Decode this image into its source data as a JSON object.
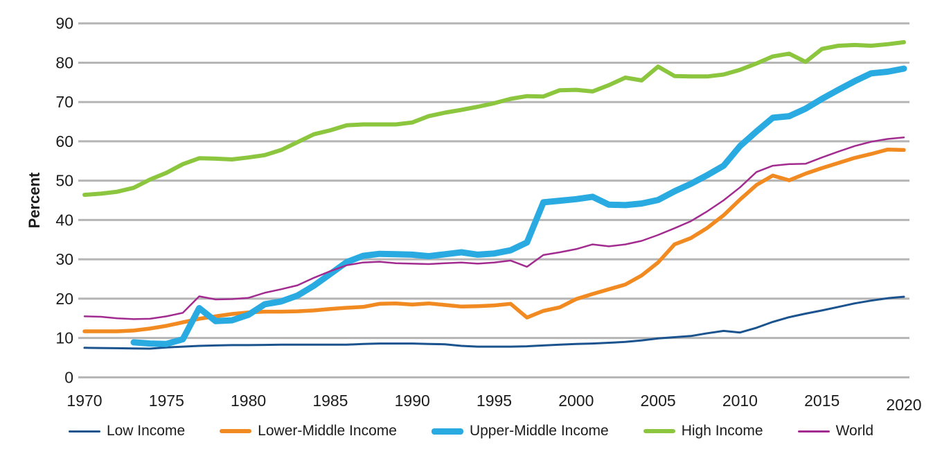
{
  "chart_data": {
    "type": "line",
    "title": "",
    "ylabel": "Percent",
    "xlabel": "",
    "ylim": [
      0,
      90
    ],
    "xlim": [
      1970,
      2020
    ],
    "y_ticks": [
      0,
      10,
      20,
      30,
      40,
      50,
      60,
      70,
      80,
      90
    ],
    "x_ticks": [
      1970,
      1975,
      1980,
      1985,
      1990,
      1995,
      2000,
      2005,
      2010,
      2015,
      2020
    ],
    "grid": true,
    "legend_position": "bottom",
    "background_color": "#ffffff",
    "grid_color": "#b5b5b5",
    "text_color": "#1c1c1c",
    "series": [
      {
        "name": "Low Income",
        "color": "#1b538e",
        "width": 3,
        "start_year": 1970,
        "values": [
          7.5,
          7.45,
          7.4,
          7.35,
          7.3,
          7.6,
          7.8,
          8.0,
          8.1,
          8.2,
          8.2,
          8.25,
          8.3,
          8.3,
          8.3,
          8.3,
          8.3,
          8.5,
          8.6,
          8.6,
          8.6,
          8.5,
          8.4,
          8.0,
          7.8,
          7.8,
          7.8,
          7.9,
          8.1,
          8.3,
          8.5,
          8.6,
          8.8,
          9.0,
          9.4,
          9.9,
          10.2,
          10.5,
          11.2,
          11.8,
          11.4,
          12.6,
          14.1,
          15.3,
          16.2,
          17.0,
          17.9,
          18.8,
          19.5,
          20.1,
          20.5
        ]
      },
      {
        "name": "Lower-Middle Income",
        "color": "#f18a21",
        "width": 5.5,
        "start_year": 1970,
        "values": [
          11.7,
          11.7,
          11.7,
          11.9,
          12.4,
          13.1,
          14.0,
          14.9,
          15.5,
          16.1,
          16.5,
          16.7,
          16.7,
          16.8,
          17.0,
          17.4,
          17.7,
          17.9,
          18.7,
          18.8,
          18.5,
          18.8,
          18.4,
          18.0,
          18.1,
          18.3,
          18.7,
          15.2,
          16.9,
          17.8,
          19.9,
          21.2,
          22.4,
          23.6,
          25.9,
          29.2,
          33.8,
          35.4,
          38.0,
          41.2,
          45.2,
          48.9,
          51.3,
          50.1,
          51.8,
          53.2,
          54.5,
          55.8,
          56.8,
          57.9,
          57.8
        ]
      },
      {
        "name": "Upper-Middle Income",
        "color": "#29abe2",
        "width": 9,
        "start_year": 1973,
        "values": [
          8.9,
          8.6,
          8.5,
          9.7,
          17.6,
          14.3,
          14.5,
          15.9,
          18.6,
          19.3,
          20.8,
          23.3,
          26.3,
          29.3,
          30.9,
          31.4,
          31.3,
          31.2,
          30.8,
          31.3,
          31.8,
          31.2,
          31.5,
          32.3,
          34.3,
          44.5,
          44.9,
          45.3,
          45.9,
          43.9,
          43.8,
          44.2,
          45.1,
          47.3,
          49.2,
          51.4,
          53.8,
          58.8,
          62.5,
          66.0,
          66.4,
          68.3,
          70.8,
          73.1,
          75.3,
          77.3,
          77.7,
          78.5
        ]
      },
      {
        "name": "High Income",
        "color": "#8cc63f",
        "width": 6,
        "start_year": 1970,
        "values": [
          46.4,
          46.7,
          47.2,
          48.2,
          50.3,
          52.0,
          54.2,
          55.7,
          55.6,
          55.4,
          55.9,
          56.5,
          57.8,
          59.8,
          61.8,
          62.8,
          64.1,
          64.3,
          64.3,
          64.3,
          64.8,
          66.4,
          67.3,
          68.0,
          68.8,
          69.7,
          70.8,
          71.5,
          71.4,
          73.0,
          73.1,
          72.7,
          74.3,
          76.2,
          75.5,
          79.0,
          76.6,
          76.5,
          76.5,
          77.0,
          78.2,
          79.8,
          81.6,
          82.3,
          80.2,
          83.5,
          84.3,
          84.5,
          84.3,
          84.7,
          85.2
        ]
      },
      {
        "name": "World",
        "color": "#a22b90",
        "width": 2.5,
        "start_year": 1970,
        "values": [
          15.5,
          15.4,
          15.0,
          14.8,
          14.9,
          15.5,
          16.4,
          20.6,
          19.8,
          19.9,
          20.2,
          21.5,
          22.4,
          23.4,
          25.3,
          27.0,
          28.5,
          29.2,
          29.4,
          29.0,
          28.9,
          28.8,
          29.0,
          29.2,
          28.9,
          29.2,
          29.7,
          28.1,
          31.1,
          31.8,
          32.6,
          33.8,
          33.3,
          33.8,
          34.7,
          36.2,
          37.9,
          39.7,
          42.2,
          45.0,
          48.3,
          52.2,
          53.8,
          54.2,
          54.3,
          55.9,
          57.4,
          58.8,
          59.9,
          60.6,
          61.0
        ]
      }
    ]
  }
}
